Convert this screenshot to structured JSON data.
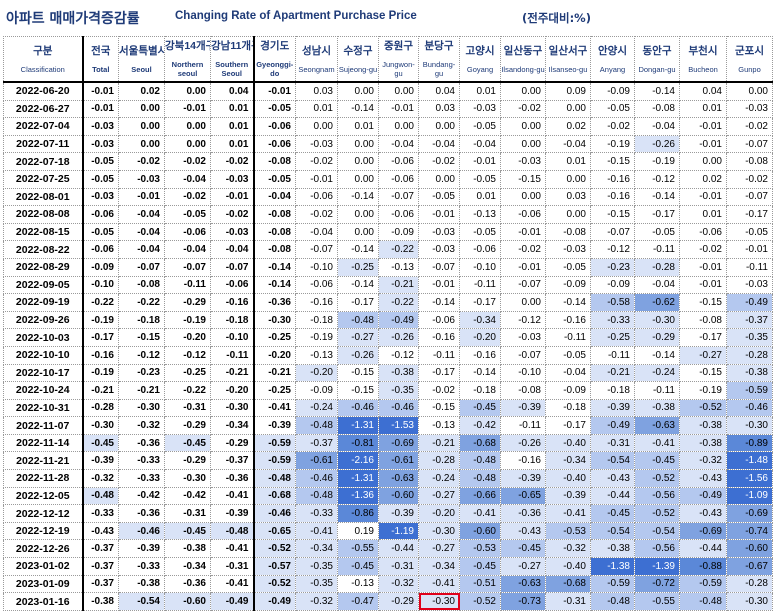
{
  "title": {
    "korean": "아파트 매매가격증감률",
    "english": "Changing Rate of Apartment Purchase Price",
    "unit": "(전주대비:%)"
  },
  "colors": {
    "header_text": "#1f3b78",
    "highlight_box": "#e0001b",
    "shade_light": "#d9e3f7",
    "shade_medium": "#b4c8ef",
    "shade_dark": "#3d6fd2"
  },
  "columns": [
    {
      "ko": "구분",
      "en": "Classification"
    },
    {
      "ko": "전국",
      "en": "Total"
    },
    {
      "ko": "서울특별시",
      "en": "Seoul"
    },
    {
      "ko": "강북14개구",
      "en": "Northern seoul"
    },
    {
      "ko": "강남11개구",
      "en": "Southern Seoul"
    },
    {
      "ko": "경기도",
      "en": "Gyeonggi-do"
    },
    {
      "ko": "성남시",
      "en": "Seongnam"
    },
    {
      "ko": "수정구",
      "en": "Sujeong-gu"
    },
    {
      "ko": "중원구",
      "en": "Jungwon-gu"
    },
    {
      "ko": "분당구",
      "en": "Bundang-gu"
    },
    {
      "ko": "고양시",
      "en": "Goyang"
    },
    {
      "ko": "일산동구",
      "en": "Ilsandong-gu"
    },
    {
      "ko": "일산서구",
      "en": "Ilsanseo-gu"
    },
    {
      "ko": "안양시",
      "en": "Anyang"
    },
    {
      "ko": "동안구",
      "en": "Dongan-gu"
    },
    {
      "ko": "부천시",
      "en": "Bucheon"
    },
    {
      "ko": "군포시",
      "en": "Gunpo"
    }
  ],
  "rows": [
    {
      "date": "2022-06-20",
      "values": [
        "-0.01",
        "0.02",
        "0.00",
        "0.04",
        "-0.01",
        "0.03",
        "0.00",
        "0.00",
        "0.04",
        "0.01",
        "0.00",
        "0.09",
        "-0.09",
        "-0.14",
        "0.04",
        "0.00"
      ]
    },
    {
      "date": "2022-06-27",
      "values": [
        "-0.01",
        "0.00",
        "-0.01",
        "0.01",
        "-0.05",
        "0.01",
        "-0.14",
        "-0.01",
        "0.03",
        "-0.03",
        "-0.02",
        "0.00",
        "-0.05",
        "-0.08",
        "0.01",
        "-0.03"
      ]
    },
    {
      "date": "2022-07-04",
      "values": [
        "-0.03",
        "0.00",
        "0.00",
        "0.01",
        "-0.06",
        "0.00",
        "0.01",
        "0.00",
        "0.00",
        "-0.05",
        "0.00",
        "0.02",
        "-0.02",
        "-0.04",
        "-0.01",
        "-0.02"
      ]
    },
    {
      "date": "2022-07-11",
      "values": [
        "-0.03",
        "0.00",
        "0.00",
        "0.01",
        "-0.06",
        "-0.03",
        "0.00",
        "-0.04",
        "-0.04",
        "-0.04",
        "0.00",
        "-0.04",
        "-0.19",
        "-0.26",
        "-0.01",
        "-0.07"
      ]
    },
    {
      "date": "2022-07-18",
      "values": [
        "-0.05",
        "-0.02",
        "-0.02",
        "-0.02",
        "-0.08",
        "-0.02",
        "0.00",
        "-0.06",
        "-0.02",
        "-0.01",
        "-0.03",
        "0.01",
        "-0.15",
        "-0.19",
        "0.00",
        "-0.08"
      ]
    },
    {
      "date": "2022-07-25",
      "values": [
        "-0.05",
        "-0.03",
        "-0.04",
        "-0.03",
        "-0.05",
        "-0.01",
        "0.00",
        "-0.06",
        "0.00",
        "-0.05",
        "-0.15",
        "0.00",
        "-0.16",
        "-0.12",
        "0.02",
        "-0.02"
      ]
    },
    {
      "date": "2022-08-01",
      "values": [
        "-0.03",
        "-0.01",
        "-0.02",
        "-0.01",
        "-0.04",
        "-0.06",
        "-0.14",
        "-0.07",
        "-0.05",
        "0.01",
        "0.00",
        "0.03",
        "-0.16",
        "-0.14",
        "-0.01",
        "-0.07"
      ]
    },
    {
      "date": "2022-08-08",
      "values": [
        "-0.06",
        "-0.04",
        "-0.05",
        "-0.02",
        "-0.08",
        "-0.02",
        "0.00",
        "-0.06",
        "-0.01",
        "-0.13",
        "-0.06",
        "0.00",
        "-0.15",
        "-0.17",
        "0.01",
        "-0.17"
      ]
    },
    {
      "date": "2022-08-15",
      "values": [
        "-0.05",
        "-0.04",
        "-0.06",
        "-0.03",
        "-0.08",
        "-0.04",
        "0.00",
        "-0.09",
        "-0.03",
        "-0.05",
        "-0.01",
        "-0.08",
        "-0.07",
        "-0.05",
        "-0.06",
        "-0.05"
      ]
    },
    {
      "date": "2022-08-22",
      "values": [
        "-0.06",
        "-0.04",
        "-0.04",
        "-0.04",
        "-0.08",
        "-0.07",
        "-0.14",
        "-0.22",
        "-0.03",
        "-0.06",
        "-0.02",
        "-0.03",
        "-0.12",
        "-0.11",
        "-0.02",
        "-0.01"
      ]
    },
    {
      "date": "2022-08-29",
      "values": [
        "-0.09",
        "-0.07",
        "-0.07",
        "-0.07",
        "-0.14",
        "-0.10",
        "-0.25",
        "-0.13",
        "-0.07",
        "-0.10",
        "-0.01",
        "-0.05",
        "-0.23",
        "-0.28",
        "-0.01",
        "-0.11"
      ]
    },
    {
      "date": "2022-09-05",
      "values": [
        "-0.10",
        "-0.08",
        "-0.11",
        "-0.06",
        "-0.14",
        "-0.06",
        "-0.14",
        "-0.21",
        "-0.01",
        "-0.11",
        "-0.07",
        "-0.09",
        "-0.09",
        "-0.04",
        "-0.01",
        "-0.03"
      ]
    },
    {
      "date": "2022-09-19",
      "values": [
        "-0.22",
        "-0.22",
        "-0.29",
        "-0.16",
        "-0.36",
        "-0.16",
        "-0.17",
        "-0.22",
        "-0.14",
        "-0.17",
        "0.00",
        "-0.14",
        "-0.58",
        "-0.62",
        "-0.15",
        "-0.49"
      ]
    },
    {
      "date": "2022-09-26",
      "values": [
        "-0.19",
        "-0.18",
        "-0.19",
        "-0.18",
        "-0.30",
        "-0.18",
        "-0.48",
        "-0.49",
        "-0.06",
        "-0.34",
        "-0.12",
        "-0.16",
        "-0.33",
        "-0.30",
        "-0.08",
        "-0.37"
      ]
    },
    {
      "date": "2022-10-03",
      "values": [
        "-0.17",
        "-0.15",
        "-0.20",
        "-0.10",
        "-0.25",
        "-0.19",
        "-0.27",
        "-0.26",
        "-0.16",
        "-0.20",
        "-0.03",
        "-0.11",
        "-0.25",
        "-0.29",
        "-0.17",
        "-0.35"
      ]
    },
    {
      "date": "2022-10-10",
      "values": [
        "-0.16",
        "-0.12",
        "-0.12",
        "-0.11",
        "-0.20",
        "-0.13",
        "-0.26",
        "-0.12",
        "-0.11",
        "-0.16",
        "-0.07",
        "-0.05",
        "-0.11",
        "-0.14",
        "-0.27",
        "-0.28"
      ]
    },
    {
      "date": "2022-10-17",
      "values": [
        "-0.19",
        "-0.23",
        "-0.25",
        "-0.21",
        "-0.21",
        "-0.20",
        "-0.15",
        "-0.38",
        "-0.17",
        "-0.14",
        "-0.10",
        "-0.04",
        "-0.21",
        "-0.24",
        "-0.15",
        "-0.38"
      ]
    },
    {
      "date": "2022-10-24",
      "values": [
        "-0.21",
        "-0.21",
        "-0.22",
        "-0.20",
        "-0.25",
        "-0.09",
        "-0.15",
        "-0.35",
        "-0.02",
        "-0.18",
        "-0.08",
        "-0.09",
        "-0.18",
        "-0.11",
        "-0.19",
        "-0.59"
      ]
    },
    {
      "date": "2022-10-31",
      "values": [
        "-0.28",
        "-0.30",
        "-0.31",
        "-0.30",
        "-0.41",
        "-0.24",
        "-0.46",
        "-0.46",
        "-0.15",
        "-0.45",
        "-0.39",
        "-0.18",
        "-0.39",
        "-0.38",
        "-0.52",
        "-0.46"
      ]
    },
    {
      "date": "2022-11-07",
      "values": [
        "-0.30",
        "-0.32",
        "-0.29",
        "-0.34",
        "-0.39",
        "-0.48",
        "-1.31",
        "-1.53",
        "-0.13",
        "-0.42",
        "-0.11",
        "-0.17",
        "-0.49",
        "-0.63",
        "-0.38",
        "-0.30"
      ]
    },
    {
      "date": "2022-11-14",
      "values": [
        "-0.45",
        "-0.36",
        "-0.45",
        "-0.29",
        "-0.59",
        "-0.37",
        "-0.81",
        "-0.69",
        "-0.21",
        "-0.68",
        "-0.26",
        "-0.40",
        "-0.31",
        "-0.41",
        "-0.38",
        "-0.89"
      ]
    },
    {
      "date": "2022-11-21",
      "values": [
        "-0.39",
        "-0.33",
        "-0.29",
        "-0.37",
        "-0.59",
        "-0.61",
        "-2.16",
        "-0.61",
        "-0.28",
        "-0.48",
        "-0.16",
        "-0.34",
        "-0.54",
        "-0.45",
        "-0.32",
        "-1.48"
      ]
    },
    {
      "date": "2022-11-28",
      "values": [
        "-0.32",
        "-0.33",
        "-0.30",
        "-0.36",
        "-0.48",
        "-0.46",
        "-1.31",
        "-0.63",
        "-0.24",
        "-0.48",
        "-0.39",
        "-0.40",
        "-0.43",
        "-0.52",
        "-0.43",
        "-1.56"
      ]
    },
    {
      "date": "2022-12-05",
      "values": [
        "-0.48",
        "-0.42",
        "-0.42",
        "-0.41",
        "-0.68",
        "-0.48",
        "-1.36",
        "-0.60",
        "-0.27",
        "-0.66",
        "-0.65",
        "-0.39",
        "-0.44",
        "-0.56",
        "-0.49",
        "-1.09"
      ]
    },
    {
      "date": "2022-12-12",
      "values": [
        "-0.33",
        "-0.36",
        "-0.31",
        "-0.39",
        "-0.46",
        "-0.33",
        "-0.86",
        "-0.39",
        "-0.20",
        "-0.41",
        "-0.36",
        "-0.41",
        "-0.45",
        "-0.52",
        "-0.43",
        "-0.69"
      ]
    },
    {
      "date": "2022-12-19",
      "values": [
        "-0.43",
        "-0.46",
        "-0.45",
        "-0.48",
        "-0.65",
        "-0.41",
        "0.19",
        "-1.19",
        "-0.30",
        "-0.60",
        "-0.43",
        "-0.53",
        "-0.54",
        "-0.54",
        "-0.69",
        "-0.74"
      ]
    },
    {
      "date": "2022-12-26",
      "values": [
        "-0.37",
        "-0.39",
        "-0.38",
        "-0.41",
        "-0.52",
        "-0.34",
        "-0.55",
        "-0.44",
        "-0.27",
        "-0.53",
        "-0.45",
        "-0.32",
        "-0.38",
        "-0.56",
        "-0.44",
        "-0.60"
      ]
    },
    {
      "date": "2023-01-02",
      "values": [
        "-0.37",
        "-0.33",
        "-0.34",
        "-0.31",
        "-0.57",
        "-0.35",
        "-0.45",
        "-0.31",
        "-0.34",
        "-0.45",
        "-0.27",
        "-0.40",
        "-1.38",
        "-1.39",
        "-0.88",
        "-0.67"
      ]
    },
    {
      "date": "2023-01-09",
      "values": [
        "-0.37",
        "-0.38",
        "-0.36",
        "-0.41",
        "-0.52",
        "-0.35",
        "-0.13",
        "-0.32",
        "-0.41",
        "-0.51",
        "-0.63",
        "-0.68",
        "-0.59",
        "-0.72",
        "-0.59",
        "-0.28"
      ]
    },
    {
      "date": "2023-01-16",
      "values": [
        "-0.38",
        "-0.54",
        "-0.60",
        "-0.49",
        "-0.49",
        "-0.32",
        "-0.47",
        "-0.29",
        "-0.30",
        "-0.52",
        "-0.73",
        "-0.31",
        "-0.48",
        "-0.55",
        "-0.48",
        "-0.30"
      ]
    }
  ],
  "selected_cell": {
    "date": "2023-01-16",
    "column": "분당구",
    "value": "-0.30"
  }
}
